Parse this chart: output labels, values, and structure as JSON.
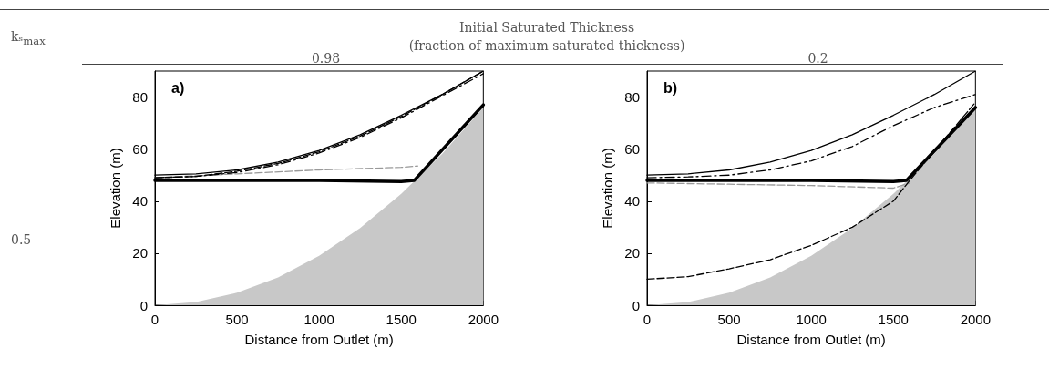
{
  "chart_data": [
    {
      "type": "line",
      "title": "0.98",
      "xlabel": "Distance from Outlet (m)",
      "ylabel": "Elevation (m)",
      "annotations": [
        "a)",
        "Initial Saturated Thickness",
        "(fraction of maximum saturated thickness)",
        "kₛ$_{max}$",
        "0.5"
      ],
      "xlim": [
        0,
        2000
      ],
      "xticks": [
        0,
        500,
        1000,
        1500,
        2000
      ],
      "ylim": [
        0,
        90
      ],
      "yticks": [
        0,
        20,
        40,
        60,
        80
      ],
      "series": [
        {
          "type": "area",
          "color": "#c8c8c8",
          "x": [
            0,
            250,
            500,
            750,
            1000,
            1250,
            1500,
            1750,
            2000
          ],
          "values": [
            0,
            1.2,
            4.8,
            10.7,
            19,
            29.7,
            42.8,
            58.2,
            76
          ]
        },
        {
          "type": "line",
          "color": "#000000",
          "line_style": "solid",
          "x": [
            0,
            500,
            1000,
            1500,
            1580,
            2000
          ],
          "values": [
            48,
            48,
            48,
            47.5,
            48,
            77
          ]
        },
        {
          "type": "line",
          "color": "#999999",
          "line_style": "dashed",
          "x": [
            0,
            500,
            1000,
            1500,
            1600
          ],
          "values": [
            49,
            50.5,
            52,
            53,
            53.5
          ]
        },
        {
          "type": "line",
          "color": "#000000",
          "line_style": "dashed",
          "x": [
            0,
            250,
            500,
            750,
            1000,
            1250,
            1500,
            1750,
            2000
          ],
          "values": [
            49,
            49.5,
            51.5,
            54.5,
            59,
            65,
            72.5,
            81,
            90
          ]
        },
        {
          "type": "line",
          "color": "#000000",
          "line_style": "dashdot",
          "x": [
            0,
            250,
            500,
            750,
            1000,
            1250,
            1500,
            1750,
            2000
          ],
          "values": [
            49,
            49.5,
            51,
            54,
            58.5,
            64.5,
            72,
            80.5,
            89
          ]
        },
        {
          "type": "line",
          "color": "#000000",
          "line_style": "solid",
          "x": [
            0,
            250,
            500,
            750,
            1000,
            1250,
            1500,
            1750,
            2000
          ],
          "values": [
            50,
            50.5,
            52,
            55,
            59.5,
            65.5,
            73,
            81,
            90
          ]
        }
      ]
    },
    {
      "type": "line",
      "title": "0.2",
      "xlabel": "Distance from Outlet (m)",
      "ylabel": "Elevation (m)",
      "annotations": [
        "b)"
      ],
      "xlim": [
        0,
        2000
      ],
      "xticks": [
        0,
        500,
        1000,
        1500,
        2000
      ],
      "ylim": [
        0,
        90
      ],
      "yticks": [
        0,
        20,
        40,
        60,
        80
      ],
      "series": [
        {
          "type": "area",
          "color": "#c8c8c8",
          "x": [
            0,
            250,
            500,
            750,
            1000,
            1250,
            1500,
            1750,
            2000
          ],
          "values": [
            0,
            1.2,
            4.8,
            10.7,
            19,
            29.7,
            42.8,
            58.2,
            76
          ]
        },
        {
          "type": "line",
          "color": "#000000",
          "line_style": "solid",
          "x": [
            0,
            500,
            1000,
            1500,
            1580,
            2000
          ],
          "values": [
            48,
            48,
            48,
            47.5,
            48,
            76
          ]
        },
        {
          "type": "line",
          "color": "#999999",
          "line_style": "dashed",
          "x": [
            0,
            500,
            1000,
            1500,
            1600
          ],
          "values": [
            47,
            46.5,
            46,
            45,
            47
          ]
        },
        {
          "type": "line",
          "color": "#000000",
          "line_style": "dashed",
          "x": [
            0,
            250,
            500,
            750,
            1000,
            1250,
            1500,
            1600,
            2000
          ],
          "values": [
            10,
            11,
            14,
            17.5,
            23,
            30,
            40,
            48,
            78
          ]
        },
        {
          "type": "line",
          "color": "#000000",
          "line_style": "dashdot",
          "x": [
            0,
            250,
            500,
            750,
            1000,
            1250,
            1500,
            1750,
            2000
          ],
          "values": [
            49,
            49.3,
            50,
            52,
            55.5,
            61,
            69,
            76,
            81
          ]
        },
        {
          "type": "line",
          "color": "#000000",
          "line_style": "solid",
          "x": [
            0,
            250,
            500,
            750,
            1000,
            1250,
            1500,
            1750,
            2000
          ],
          "values": [
            50,
            50.5,
            52,
            55,
            59.5,
            65.5,
            73,
            81,
            90
          ]
        }
      ]
    }
  ]
}
